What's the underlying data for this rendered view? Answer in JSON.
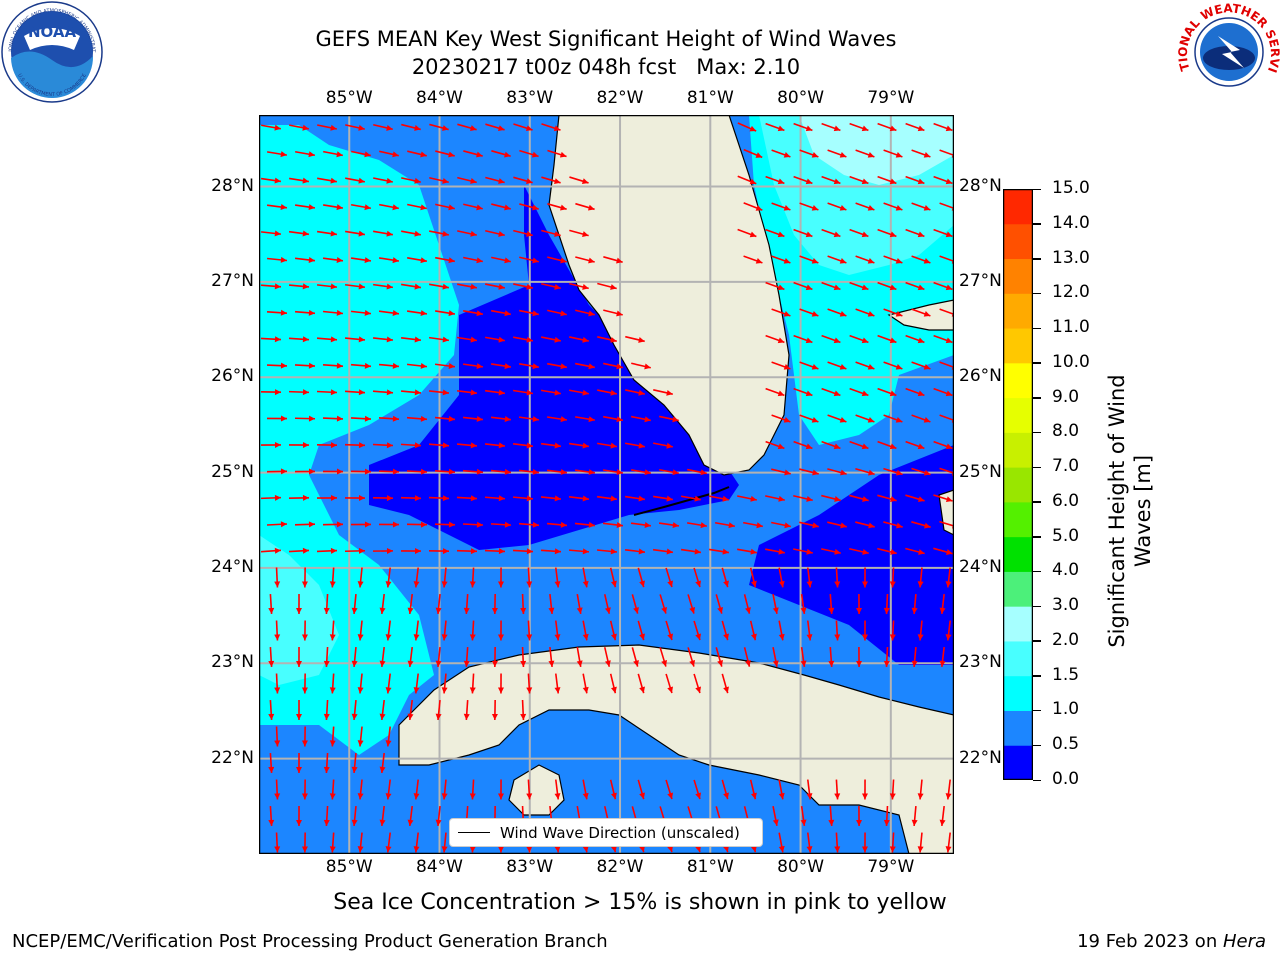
{
  "title": {
    "line1": "GEFS MEAN Key West Significant Height of Wind Waves",
    "line2": "20230217 t00z 048h fcst   Max: 2.10"
  },
  "axes": {
    "lon_ticks": [
      "85°W",
      "84°W",
      "83°W",
      "82°W",
      "81°W",
      "80°W",
      "79°W"
    ],
    "lat_ticks": [
      "28°N",
      "27°N",
      "26°N",
      "25°N",
      "24°N",
      "23°N",
      "22°N"
    ],
    "lon_range": [
      -86.0,
      -78.3
    ],
    "lat_range": [
      21.0,
      28.75
    ]
  },
  "legend": {
    "label": "Wind Wave Direction (unscaled)",
    "placement": "bottom-center"
  },
  "colorbar": {
    "label_line1": "Significant Height of Wind",
    "label_line2": "Waves [m]",
    "ticks": [
      "0.0",
      "0.5",
      "1.0",
      "1.5",
      "2.0",
      "3.0",
      "4.0",
      "5.0",
      "6.0",
      "7.0",
      "8.0",
      "9.0",
      "10.0",
      "11.0",
      "12.0",
      "13.0",
      "14.0",
      "15.0"
    ],
    "colors": [
      "#0000ff",
      "#1c86ff",
      "#00ffff",
      "#48ffff",
      "#a6ffff",
      "#4cf07a",
      "#00e100",
      "#54f000",
      "#99e600",
      "#c8f000",
      "#e6ff00",
      "#ffff00",
      "#ffc800",
      "#ffaa00",
      "#ff8200",
      "#ff5000",
      "#ff2800",
      "#ff0000"
    ]
  },
  "note": "Sea Ice Concentration > 15% is shown in pink to yellow",
  "footer": {
    "left": "NCEP/EMC/Verification Post Processing Product Generation Branch",
    "right_prefix": "19 Feb 2023 on ",
    "right_italic": "Hera"
  },
  "logos": {
    "noaa_text": "NOAA",
    "noaa_ring_top": "NATIONAL OCEANIC AND ATMOSPHERIC ADMINISTRATION",
    "noaa_ring_bottom": "U.S. DEPARTMENT OF COMMERCE",
    "nws_ring": "NATIONAL WEATHER SERVICE"
  },
  "map_colors": {
    "land": "#eeeedc",
    "band_0_0_5": "#0000ff",
    "band_0_5_1_0": "#1c86ff",
    "band_1_0_1_5": "#00ffff",
    "band_1_5_2_0": "#48ffff",
    "band_2_0_3_0": "#a6ffff",
    "arrow": "#ff0000",
    "grid": "#b3b3b3"
  }
}
